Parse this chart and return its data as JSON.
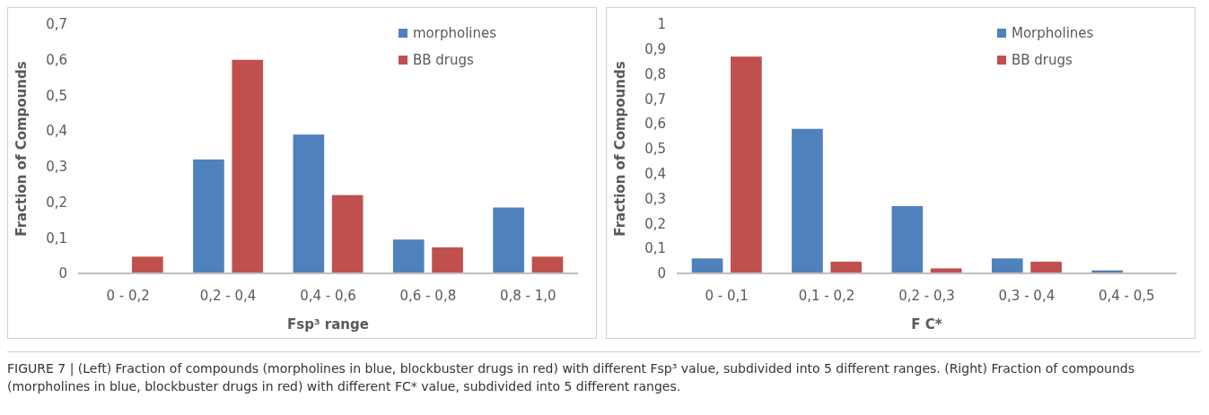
{
  "chart_data": [
    {
      "type": "bar",
      "categories": [
        "0 - 0,2",
        "0,2 - 0,4",
        "0,4 - 0,6",
        "0,6 - 0,8",
        "0,8 - 1,0"
      ],
      "xlabel": "Fsp³ range",
      "ylabel": "Fraction of Compounds",
      "ylim": [
        0,
        0.7
      ],
      "yticks": [
        {
          "value": 0,
          "label": "0"
        },
        {
          "value": 0.1,
          "label": "0,1"
        },
        {
          "value": 0.2,
          "label": "0,2"
        },
        {
          "value": 0.3,
          "label": "0,3"
        },
        {
          "value": 0.4,
          "label": "0,4"
        },
        {
          "value": 0.5,
          "label": "0,5"
        },
        {
          "value": 0.6,
          "label": "0,6"
        },
        {
          "value": 0.7,
          "label": "0,7"
        }
      ],
      "grid": false,
      "legend": "top right",
      "series": [
        {
          "name": "morpholines",
          "color": "#4f81bd",
          "values": [
            0,
            0.32,
            0.39,
            0.095,
            0.185
          ]
        },
        {
          "name": "BB drugs",
          "color": "#c0504d",
          "values": [
            0.047,
            0.6,
            0.22,
            0.073,
            0.047
          ]
        }
      ]
    },
    {
      "type": "bar",
      "categories": [
        "0 - 0,1",
        "0,1 - 0,2",
        "0,2 - 0,3",
        "0,3 - 0,4",
        "0,4 - 0,5"
      ],
      "xlabel": "F C*",
      "ylabel": "Fraction of Compounds",
      "ylim": [
        0,
        1
      ],
      "yticks": [
        {
          "value": 0,
          "label": "0"
        },
        {
          "value": 0.1,
          "label": "0,1"
        },
        {
          "value": 0.2,
          "label": "0,2"
        },
        {
          "value": 0.3,
          "label": "0,3"
        },
        {
          "value": 0.4,
          "label": "0,4"
        },
        {
          "value": 0.5,
          "label": "0,5"
        },
        {
          "value": 0.6,
          "label": "0,6"
        },
        {
          "value": 0.7,
          "label": "0,7"
        },
        {
          "value": 0.8,
          "label": "0,8"
        },
        {
          "value": 0.9,
          "label": "0,9"
        },
        {
          "value": 1,
          "label": "1"
        }
      ],
      "grid": false,
      "legend": "top right",
      "series": [
        {
          "name": "Morpholines",
          "color": "#4f81bd",
          "values": [
            0.06,
            0.58,
            0.27,
            0.06,
            0.012
          ]
        },
        {
          "name": "BB drugs",
          "color": "#c0504d",
          "values": [
            0.87,
            0.047,
            0.02,
            0.047,
            0
          ]
        }
      ],
      "annotations": [
        "FIGURE 7 | (Left) Fraction of compounds (morpholines in blue, blockbuster drugs in red) with different Fsp³ value, subdivided into 5 different ranges. (Right) Fraction of compounds (morpholines in blue, blockbuster drugs in red) with different FC* value, subdivided into 5 different ranges."
      ]
    }
  ]
}
